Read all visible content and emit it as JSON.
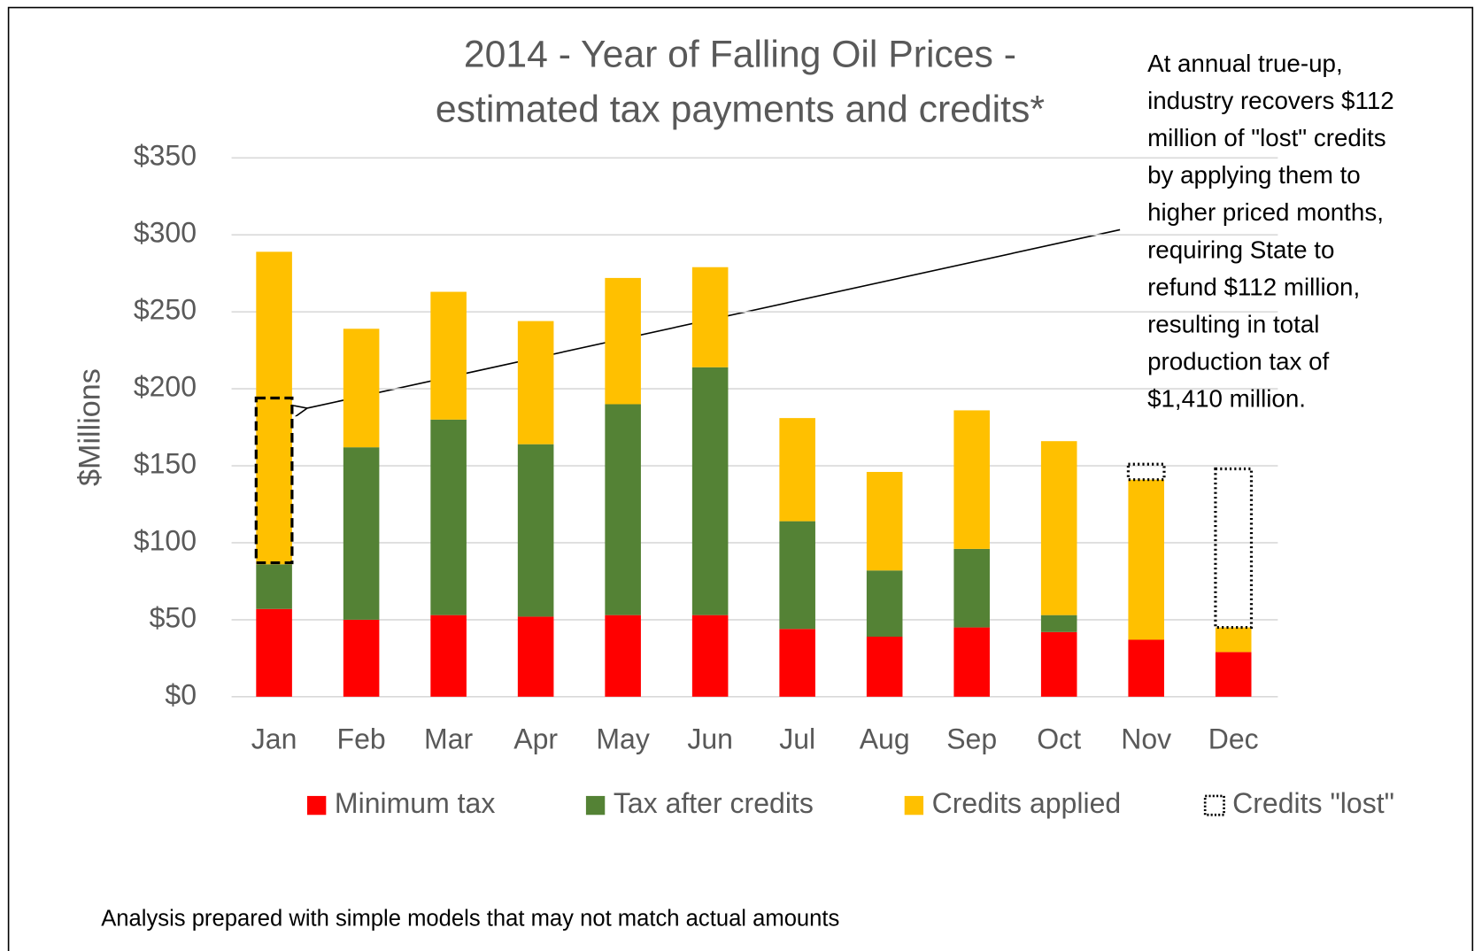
{
  "chart_data": {
    "type": "stacked_bar",
    "title": [
      "2014 - Year of Falling Oil Prices -",
      "estimated tax payments and credits*"
    ],
    "y_label": "$Millions",
    "categories": [
      "Jan",
      "Feb",
      "Mar",
      "Apr",
      "May",
      "Jun",
      "Jul",
      "Aug",
      "Sep",
      "Oct",
      "Nov",
      "Dec"
    ],
    "series": [
      {
        "name": "Minimum tax",
        "color": "#ff0000",
        "values": [
          57,
          50,
          53,
          52,
          53,
          53,
          44,
          39,
          45,
          42,
          37,
          29
        ]
      },
      {
        "name": "Tax after credits",
        "color": "#548235",
        "values": [
          29,
          112,
          127,
          112,
          137,
          161,
          70,
          43,
          51,
          11,
          0,
          0
        ]
      },
      {
        "name": "Credits applied",
        "color": "#ffc000",
        "values": [
          203,
          77,
          83,
          80,
          82,
          65,
          67,
          64,
          90,
          113,
          104,
          16
        ]
      },
      {
        "name": "Credits \"lost\"",
        "color": "none",
        "values": [
          null,
          null,
          null,
          null,
          null,
          null,
          null,
          null,
          null,
          null,
          10,
          103
        ]
      }
    ],
    "highlight_range": [
      87,
      194
    ],
    "ylim": [
      0,
      350
    ],
    "yticks": [
      {
        "value": 0,
        "label": "$0"
      },
      {
        "value": 50,
        "label": "$50"
      },
      {
        "value": 100,
        "label": "$100"
      },
      {
        "value": 150,
        "label": "$150"
      },
      {
        "value": 200,
        "label": "$200"
      },
      {
        "value": 250,
        "label": "$250"
      },
      {
        "value": 300,
        "label": "$300"
      },
      {
        "value": 350,
        "label": "$350"
      }
    ],
    "grid": true,
    "annotation": [
      "At annual true-up,",
      "industry recovers $112",
      "million of \"lost\" credits",
      "by applying them to",
      "higher priced months,",
      "requiring State to",
      "refund $112 million,",
      "resulting in total",
      "production tax of",
      "$1,410 million."
    ],
    "footnote": "Analysis prepared with simple models that may not match actual amounts"
  }
}
